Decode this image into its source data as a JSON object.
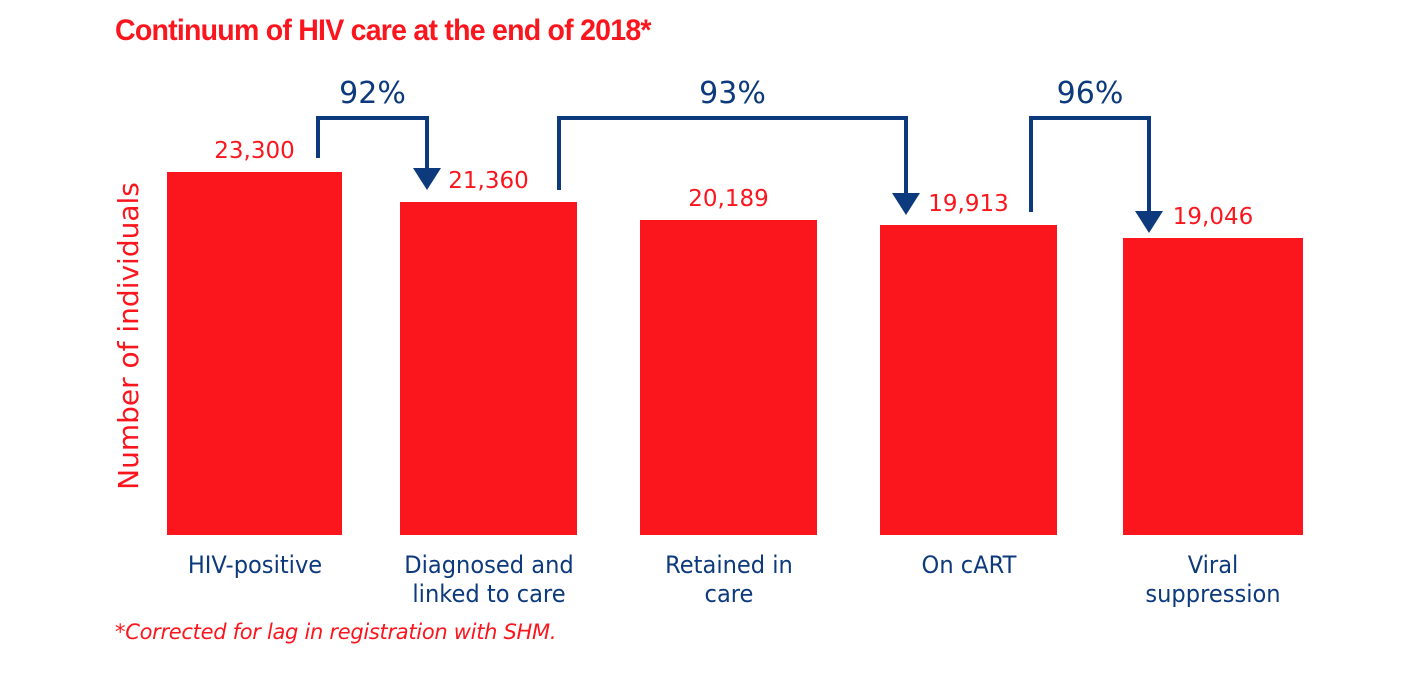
{
  "title": "Continuum of HIV care at the end of 2018*",
  "y_axis_label": "Number of individuals",
  "footnote": "*Corrected for lag in registration with SHM.",
  "colors": {
    "red": "#FB161E",
    "navy": "#0D3A7C",
    "background": "#FFFFFF"
  },
  "chart_data": {
    "type": "bar",
    "title": "Continuum of HIV care at the end of 2018*",
    "xlabel": "",
    "ylabel": "Number of individuals",
    "ylim": [
      0,
      23300
    ],
    "grid": false,
    "legend": "none",
    "bar_color": "#FB161E",
    "categories": [
      "HIV-positive",
      "Diagnosed and linked to care",
      "Retained in care",
      "On cART",
      "Viral suppression"
    ],
    "category_lines": [
      [
        "HIV-positive",
        ""
      ],
      [
        "Diagnosed and",
        "linked to care"
      ],
      [
        "Retained in",
        "care"
      ],
      [
        "On cART",
        ""
      ],
      [
        "Viral",
        "suppression"
      ]
    ],
    "values": [
      23300,
      21360,
      20189,
      19913,
      19046
    ],
    "value_labels": [
      "23,300",
      "21,360",
      "20,189",
      "19,913",
      "19,046"
    ],
    "transitions": [
      {
        "from": "HIV-positive",
        "to": "Diagnosed and linked to care",
        "label": "92%"
      },
      {
        "from": "Diagnosed and linked to care",
        "to": "On cART",
        "label": "93%"
      },
      {
        "from": "On cART",
        "to": "Viral suppression",
        "label": "96%"
      }
    ],
    "footnote": "*Corrected for lag in registration with SHM."
  }
}
